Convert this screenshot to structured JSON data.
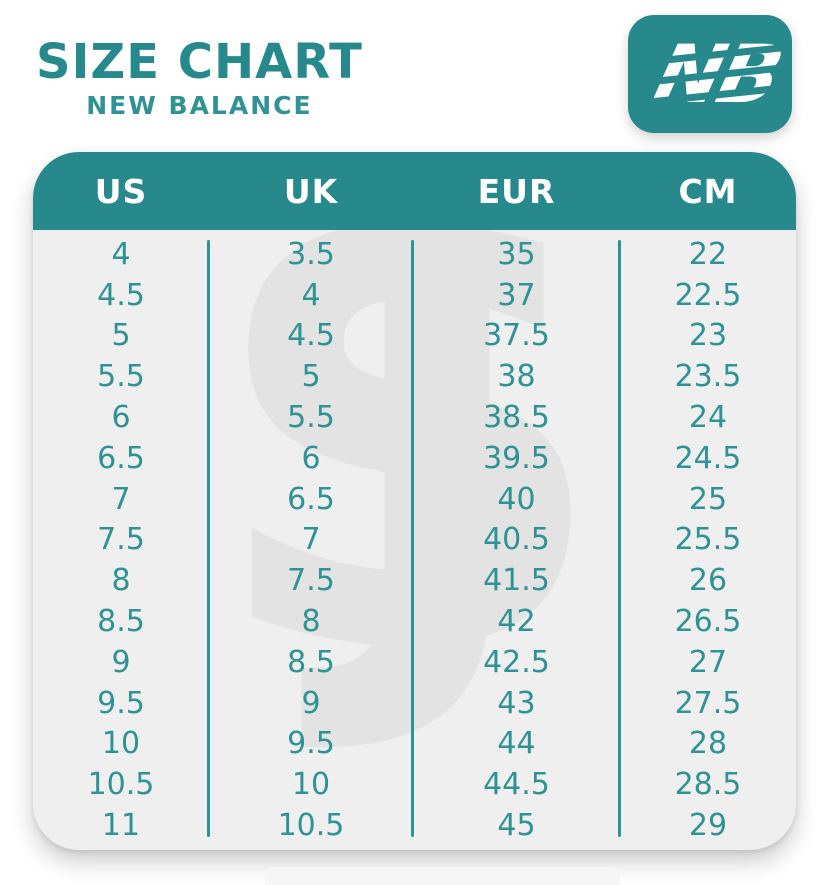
{
  "header": {
    "title": "SIZE CHART",
    "subtitle": "NEW BALANCE",
    "logo_letters": "NB"
  },
  "watermark": {
    "letter_s": "S",
    "letter_j": "J"
  },
  "colors": {
    "teal": "#27898C",
    "cell_text": "#2F9294",
    "body_bg": "#EFEFEF",
    "header_text": "#FFFFFF",
    "watermark_gray": "#E3E3E3"
  },
  "chart_data": {
    "type": "table",
    "title": "SIZE CHART",
    "subtitle": "NEW BALANCE",
    "columns": [
      "US",
      "UK",
      "EUR",
      "CM"
    ],
    "rows": [
      [
        "4",
        "3.5",
        "35",
        "22"
      ],
      [
        "4.5",
        "4",
        "37",
        "22.5"
      ],
      [
        "5",
        "4.5",
        "37.5",
        "23"
      ],
      [
        "5.5",
        "5",
        "38",
        "23.5"
      ],
      [
        "6",
        "5.5",
        "38.5",
        "24"
      ],
      [
        "6.5",
        "6",
        "39.5",
        "24.5"
      ],
      [
        "7",
        "6.5",
        "40",
        "25"
      ],
      [
        "7.5",
        "7",
        "40.5",
        "25.5"
      ],
      [
        "8",
        "7.5",
        "41.5",
        "26"
      ],
      [
        "8.5",
        "8",
        "42",
        "26.5"
      ],
      [
        "9",
        "8.5",
        "42.5",
        "27"
      ],
      [
        "9.5",
        "9",
        "43",
        "27.5"
      ],
      [
        "10",
        "9.5",
        "44",
        "28"
      ],
      [
        "10.5",
        "10",
        "44.5",
        "28.5"
      ],
      [
        "11",
        "10.5",
        "45",
        "29"
      ]
    ],
    "legend": "none",
    "grid": "column dividers only"
  }
}
